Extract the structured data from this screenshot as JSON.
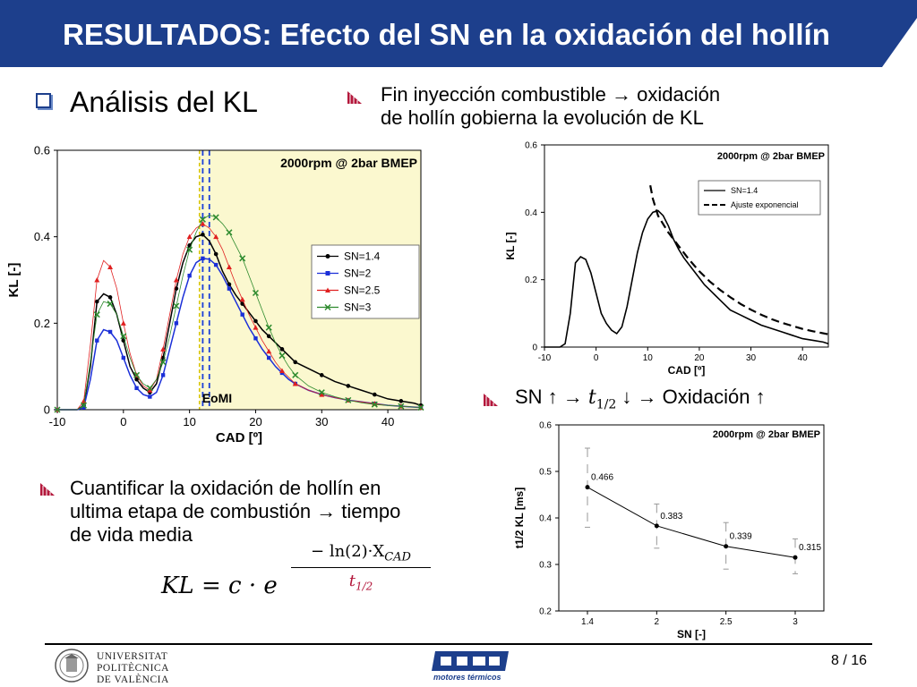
{
  "header": {
    "title": "RESULTADOS: Efecto del SN en la oxidación del hollín"
  },
  "colors": {
    "header_blue": "#1d3f8c",
    "shaded_region": "#fbf8cf",
    "bullet_magenta": "#b3173b",
    "eomi_line": "#1b3fd8",
    "yellow_line": "#d8c500"
  },
  "main": {
    "heading": "Análisis del KL",
    "bullet1": {
      "line1": "Fin inyección combustible",
      "arrow": "→",
      "line1_end": "oxidación",
      "line2": "de hollín gobierna la evolución de KL"
    },
    "bullet2": {
      "prefix": "SN ↑ →",
      "t_symbol": "t",
      "t_sub": "1/2",
      "suffix": "↓ → Oxidación ↑"
    },
    "bullet3": {
      "line1": "Cuantificar la oxidación de hollín en",
      "line2": "ultima etapa de combustión → tiempo",
      "line3": "de vida media"
    },
    "formula": {
      "lhs": "KL = c · e",
      "exp_numerator": "− ln(2)·X",
      "exp_num_sub": "CAD",
      "exp_denominator": "t",
      "exp_den_sub": "1/2"
    }
  },
  "chart_data": [
    {
      "type": "line",
      "title": "2000rpm @ 2bar BMEP",
      "xlabel": "CAD [º]",
      "ylabel": "KL [-]",
      "xlim": [
        -10,
        45
      ],
      "ylim": [
        0,
        0.6
      ],
      "xticks": [
        "-10",
        "0",
        "10",
        "20",
        "30",
        "40"
      ],
      "yticks": [
        "0",
        "0.2",
        "0.4",
        "0.6"
      ],
      "annotation": "EoMI",
      "shaded_from_x": 11.5,
      "eomi_lines_x": [
        12,
        13
      ],
      "legend_position": "middle-right",
      "series": [
        {
          "name": "SN=1.4",
          "color": "#000000",
          "marker": "circle",
          "x": [
            -10,
            -7,
            -6,
            -5,
            -4,
            -3,
            -2,
            -1,
            0,
            1,
            2,
            3,
            4,
            5,
            6,
            7,
            8,
            9,
            10,
            11,
            12,
            13,
            14,
            15,
            16,
            17,
            18,
            19,
            20,
            21,
            22,
            23,
            24,
            25,
            26,
            28,
            30,
            32,
            34,
            36,
            38,
            40,
            42,
            44,
            45
          ],
          "y": [
            0,
            0,
            0.01,
            0.1,
            0.25,
            0.268,
            0.26,
            0.22,
            0.16,
            0.1,
            0.07,
            0.05,
            0.04,
            0.06,
            0.12,
            0.2,
            0.28,
            0.34,
            0.38,
            0.4,
            0.405,
            0.39,
            0.36,
            0.32,
            0.29,
            0.265,
            0.245,
            0.225,
            0.205,
            0.185,
            0.17,
            0.155,
            0.14,
            0.125,
            0.11,
            0.095,
            0.08,
            0.065,
            0.055,
            0.045,
            0.035,
            0.025,
            0.02,
            0.015,
            0.01
          ]
        },
        {
          "name": "SN=2",
          "color": "#1b2fd8",
          "marker": "square",
          "x": [
            -10,
            -7,
            -6,
            -5,
            -4,
            -3,
            -2,
            -1,
            0,
            1,
            2,
            3,
            4,
            5,
            6,
            7,
            8,
            9,
            10,
            11,
            12,
            13,
            14,
            15,
            16,
            17,
            18,
            19,
            20,
            21,
            22,
            23,
            24,
            25,
            26,
            28,
            30,
            32,
            34,
            36,
            38,
            40,
            42,
            44,
            45
          ],
          "y": [
            0,
            0,
            0.005,
            0.07,
            0.16,
            0.185,
            0.18,
            0.16,
            0.12,
            0.08,
            0.05,
            0.035,
            0.03,
            0.04,
            0.08,
            0.14,
            0.2,
            0.26,
            0.31,
            0.34,
            0.35,
            0.348,
            0.335,
            0.31,
            0.28,
            0.25,
            0.22,
            0.19,
            0.165,
            0.14,
            0.12,
            0.1,
            0.085,
            0.07,
            0.06,
            0.045,
            0.035,
            0.028,
            0.022,
            0.018,
            0.014,
            0.01,
            0.008,
            0.006,
            0.005
          ]
        },
        {
          "name": "SN=2.5",
          "color": "#e02020",
          "marker": "triangle",
          "x": [
            -10,
            -7,
            -6,
            -5,
            -4,
            -3,
            -2,
            -1,
            0,
            1,
            2,
            3,
            4,
            5,
            6,
            7,
            8,
            9,
            10,
            11,
            12,
            13,
            14,
            15,
            16,
            17,
            18,
            19,
            20,
            21,
            22,
            23,
            24,
            25,
            26,
            28,
            30,
            32,
            34,
            36,
            38,
            40,
            42,
            44,
            45
          ],
          "y": [
            0,
            0,
            0.02,
            0.15,
            0.3,
            0.345,
            0.33,
            0.28,
            0.2,
            0.13,
            0.08,
            0.055,
            0.045,
            0.07,
            0.14,
            0.22,
            0.3,
            0.36,
            0.4,
            0.42,
            0.43,
            0.42,
            0.4,
            0.37,
            0.33,
            0.29,
            0.255,
            0.22,
            0.19,
            0.16,
            0.135,
            0.11,
            0.09,
            0.075,
            0.06,
            0.045,
            0.035,
            0.028,
            0.022,
            0.018,
            0.014,
            0.01,
            0.008,
            0.006,
            0.005
          ]
        },
        {
          "name": "SN=3",
          "color": "#2e8b2e",
          "marker": "x",
          "x": [
            -10,
            -7,
            -6,
            -5,
            -4,
            -3,
            -2,
            -1,
            0,
            1,
            2,
            3,
            4,
            5,
            6,
            7,
            8,
            9,
            10,
            11,
            12,
            13,
            14,
            15,
            16,
            17,
            18,
            19,
            20,
            21,
            22,
            23,
            24,
            25,
            26,
            28,
            30,
            32,
            34,
            36,
            38,
            40,
            42,
            44,
            45
          ],
          "y": [
            0,
            0,
            0.01,
            0.11,
            0.22,
            0.25,
            0.245,
            0.22,
            0.17,
            0.12,
            0.08,
            0.06,
            0.05,
            0.07,
            0.11,
            0.17,
            0.24,
            0.31,
            0.37,
            0.41,
            0.44,
            0.45,
            0.445,
            0.43,
            0.41,
            0.38,
            0.35,
            0.31,
            0.27,
            0.23,
            0.19,
            0.155,
            0.125,
            0.1,
            0.08,
            0.055,
            0.04,
            0.03,
            0.022,
            0.016,
            0.012,
            0.01,
            0.008,
            0.006,
            0.005
          ]
        }
      ]
    },
    {
      "type": "line",
      "title": "2000rpm @ 2bar BMEP",
      "xlabel": "CAD [º]",
      "ylabel": "KL [-]",
      "xlim": [
        -10,
        45
      ],
      "ylim": [
        0,
        0.6
      ],
      "xticks": [
        "-10",
        "0",
        "10",
        "20",
        "30",
        "40"
      ],
      "yticks": [
        "0",
        "0.2",
        "0.4",
        "0.6"
      ],
      "legend_position": "top-right",
      "series": [
        {
          "name": "SN=1.4",
          "style": "solid",
          "x": [
            -10,
            -7,
            -6,
            -5,
            -4,
            -3,
            -2,
            -1,
            0,
            1,
            2,
            3,
            4,
            5,
            6,
            7,
            8,
            9,
            10,
            11,
            12,
            13,
            14,
            15,
            16,
            17,
            18,
            19,
            20,
            21,
            22,
            23,
            24,
            25,
            26,
            28,
            30,
            32,
            34,
            36,
            38,
            40,
            42,
            44,
            45
          ],
          "y": [
            0,
            0,
            0.01,
            0.1,
            0.25,
            0.268,
            0.26,
            0.22,
            0.16,
            0.1,
            0.07,
            0.05,
            0.04,
            0.06,
            0.12,
            0.2,
            0.28,
            0.34,
            0.38,
            0.4,
            0.405,
            0.39,
            0.36,
            0.32,
            0.29,
            0.265,
            0.245,
            0.225,
            0.205,
            0.185,
            0.17,
            0.155,
            0.14,
            0.125,
            0.11,
            0.095,
            0.08,
            0.065,
            0.055,
            0.045,
            0.035,
            0.025,
            0.02,
            0.015,
            0.01
          ]
        },
        {
          "name": "Ajuste exponencial",
          "style": "dashed",
          "x": [
            10.5,
            11,
            12,
            14,
            16,
            18,
            20,
            22,
            24,
            26,
            28,
            30,
            32,
            34,
            36,
            38,
            40,
            42,
            44,
            45
          ],
          "y": [
            0.48,
            0.44,
            0.39,
            0.34,
            0.3,
            0.26,
            0.225,
            0.195,
            0.17,
            0.148,
            0.128,
            0.111,
            0.096,
            0.083,
            0.072,
            0.063,
            0.054,
            0.047,
            0.041,
            0.038
          ]
        }
      ]
    },
    {
      "type": "line",
      "title": "2000rpm @ 2bar BMEP",
      "xlabel": "SN [-]",
      "ylabel": "t1/2 KL [ms]",
      "ylim": [
        0.2,
        0.6
      ],
      "categories": [
        "1.4",
        "2",
        "2.5",
        "3"
      ],
      "yticks": [
        "0.2",
        "0.3",
        "0.4",
        "0.5",
        "0.6"
      ],
      "values": [
        0.466,
        0.383,
        0.339,
        0.315
      ],
      "data_labels": [
        "0.466",
        "0.383",
        "0.339",
        "0.315"
      ],
      "error_upper": [
        0.55,
        0.43,
        0.39,
        0.355
      ],
      "error_lower": [
        0.38,
        0.335,
        0.29,
        0.28
      ]
    }
  ],
  "footer": {
    "university_line1": "UNIVERSITAT",
    "university_line2": "POLITÈCNICA",
    "university_line3": "DE VALÈNCIA",
    "institute_name": "motores térmicos",
    "page": "8 / 16"
  }
}
